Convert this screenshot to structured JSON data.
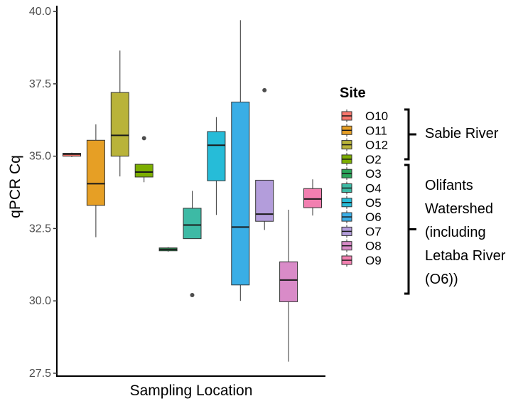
{
  "chart_data": {
    "type": "boxplot",
    "xlabel": "Sampling Location",
    "ylabel": "qPCR Cq",
    "ylim": [
      27.4,
      40.2
    ],
    "yticks": [
      "27.5",
      "30.0",
      "32.5",
      "35.0",
      "37.5",
      "40.0"
    ],
    "grid": false,
    "legend_title": "Site",
    "legend_position": "right",
    "boxes": [
      {
        "site": "O10",
        "color": "#F8766D",
        "min": 34.97,
        "q1": 35.0,
        "median": 35.07,
        "q3": 35.1,
        "max": 35.12,
        "outliers": []
      },
      {
        "site": "O11",
        "color": "#E69F25",
        "min": 32.2,
        "q1": 33.3,
        "median": 34.05,
        "q3": 35.55,
        "max": 36.1,
        "outliers": []
      },
      {
        "site": "O12",
        "color": "#B9B33A",
        "min": 34.3,
        "q1": 35.0,
        "median": 35.72,
        "q3": 37.2,
        "max": 38.65,
        "outliers": []
      },
      {
        "site": "O2",
        "color": "#7CAE00",
        "min": 34.1,
        "q1": 34.28,
        "median": 34.45,
        "q3": 34.72,
        "max": 34.72,
        "outliers": [
          35.62
        ]
      },
      {
        "site": "O3",
        "color": "#2BA55A",
        "min": 31.7,
        "q1": 31.73,
        "median": 31.78,
        "q3": 31.83,
        "max": 31.86,
        "outliers": []
      },
      {
        "site": "O4",
        "color": "#3DBAA5",
        "min": 32.15,
        "q1": 32.15,
        "median": 32.62,
        "q3": 33.2,
        "max": 33.8,
        "outliers": [
          30.2
        ]
      },
      {
        "site": "O5",
        "color": "#26BCD8",
        "min": 32.97,
        "q1": 34.15,
        "median": 35.38,
        "q3": 35.85,
        "max": 36.35,
        "outliers": []
      },
      {
        "site": "O6",
        "color": "#3AAEE6",
        "min": 30.0,
        "q1": 30.55,
        "median": 32.55,
        "q3": 36.87,
        "max": 39.7,
        "outliers": []
      },
      {
        "site": "O7",
        "color": "#B39DDB",
        "min": 32.45,
        "q1": 32.75,
        "median": 33.0,
        "q3": 34.17,
        "max": 34.17,
        "outliers": [
          37.28
        ]
      },
      {
        "site": "O8",
        "color": "#D98BC8",
        "min": 27.9,
        "q1": 29.97,
        "median": 30.72,
        "q3": 31.35,
        "max": 33.15,
        "outliers": []
      },
      {
        "site": "O9",
        "color": "#F27FB0",
        "min": 32.95,
        "q1": 33.22,
        "median": 33.52,
        "q3": 33.88,
        "max": 34.2,
        "outliers": []
      }
    ],
    "annotations": {
      "group1": {
        "label": "Sabie River",
        "sites": [
          "O10",
          "O11",
          "O12"
        ]
      },
      "group2": {
        "label_lines": [
          "Olifants",
          "Watershed",
          "(including",
          "Letaba River",
          "(O6))"
        ],
        "sites": [
          "O2",
          "O3",
          "O4",
          "O5",
          "O6",
          "O7",
          "O8",
          "O9"
        ]
      }
    }
  }
}
